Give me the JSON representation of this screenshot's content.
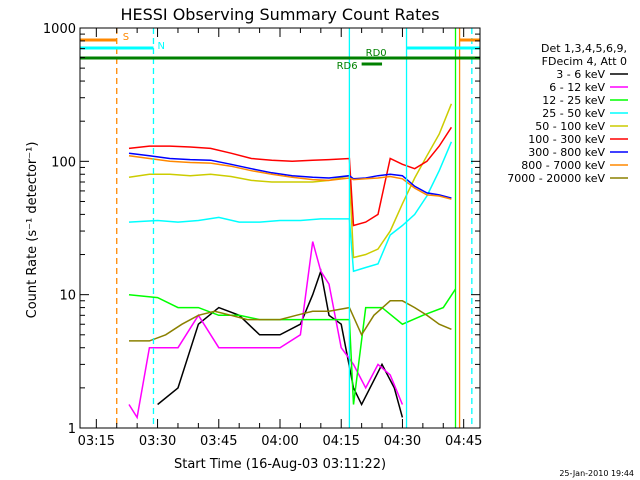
{
  "chart_data": {
    "type": "line",
    "title": "HESSI Observing Summary Count Rates",
    "xlabel": "Start Time (16-Aug-03 03:11:22)",
    "ylabel": "Count Rate (s⁻¹ detector⁻¹)",
    "footer": "25-Jan-2010 19:44",
    "y_scale": "log",
    "ylim": [
      1,
      1000
    ],
    "xlim": [
      "03:11",
      "04:49"
    ],
    "x_ticks": [
      "03:15",
      "03:30",
      "03:45",
      "04:00",
      "04:15",
      "04:30",
      "04:45"
    ],
    "y_ticks": [
      "1",
      "10",
      "100",
      "1000"
    ],
    "legend_header": [
      "Det 1,3,4,5,6,9,",
      "FDecim 4, Att 0"
    ],
    "legend_position": "right",
    "series": [
      {
        "name": "3 - 6 keV",
        "color": "#000000",
        "points": [
          [
            "03:30",
            1.5
          ],
          [
            "03:35",
            2
          ],
          [
            "03:40",
            6
          ],
          [
            "03:45",
            8
          ],
          [
            "03:50",
            7
          ],
          [
            "03:55",
            5
          ],
          [
            "04:00",
            5
          ],
          [
            "04:05",
            6
          ],
          [
            "04:08",
            10
          ],
          [
            "04:10",
            15
          ],
          [
            "04:12",
            7
          ],
          [
            "04:15",
            6
          ],
          [
            "04:18",
            2
          ],
          [
            "04:20",
            1.5
          ],
          [
            "04:25",
            3
          ],
          [
            "04:28",
            2
          ],
          [
            "04:30",
            1.2
          ]
        ]
      },
      {
        "name": "6 - 12 keV",
        "color": "#ff00ff",
        "points": [
          [
            "03:23",
            1.5
          ],
          [
            "03:25",
            1.2
          ],
          [
            "03:28",
            4
          ],
          [
            "03:32",
            4
          ],
          [
            "03:35",
            4
          ],
          [
            "03:40",
            7
          ],
          [
            "03:45",
            4
          ],
          [
            "03:50",
            4
          ],
          [
            "03:55",
            4
          ],
          [
            "04:00",
            4
          ],
          [
            "04:05",
            5
          ],
          [
            "04:08",
            25
          ],
          [
            "04:10",
            15
          ],
          [
            "04:12",
            12
          ],
          [
            "04:15",
            4
          ],
          [
            "04:18",
            3
          ],
          [
            "04:21",
            2
          ],
          [
            "04:24",
            3
          ],
          [
            "04:27",
            2.5
          ],
          [
            "04:30",
            1.5
          ]
        ]
      },
      {
        "name": "12 - 25 keV",
        "color": "#00ff00",
        "points": [
          [
            "03:23",
            10
          ],
          [
            "03:30",
            9.5
          ],
          [
            "03:35",
            8
          ],
          [
            "03:40",
            8
          ],
          [
            "03:45",
            7
          ],
          [
            "03:50",
            7
          ],
          [
            "03:55",
            6.5
          ],
          [
            "04:00",
            6.5
          ],
          [
            "04:05",
            6.5
          ],
          [
            "04:10",
            6.5
          ],
          [
            "04:17",
            6.5
          ],
          [
            "04:18",
            1.5
          ],
          [
            "04:21",
            8
          ],
          [
            "04:25",
            8
          ],
          [
            "04:30",
            6
          ],
          [
            "04:35",
            7
          ],
          [
            "04:40",
            8
          ],
          [
            "04:43",
            11
          ]
        ]
      },
      {
        "name": "25 - 50 keV",
        "color": "#00ffff",
        "points": [
          [
            "03:23",
            35
          ],
          [
            "03:30",
            36
          ],
          [
            "03:35",
            35
          ],
          [
            "03:40",
            36
          ],
          [
            "03:45",
            38
          ],
          [
            "03:50",
            35
          ],
          [
            "03:55",
            35
          ],
          [
            "04:00",
            36
          ],
          [
            "04:05",
            36
          ],
          [
            "04:10",
            37
          ],
          [
            "04:17",
            37
          ],
          [
            "04:18",
            15
          ],
          [
            "04:21",
            16
          ],
          [
            "04:24",
            17
          ],
          [
            "04:27",
            28
          ],
          [
            "04:30",
            33
          ],
          [
            "04:33",
            40
          ],
          [
            "04:36",
            55
          ],
          [
            "04:39",
            85
          ],
          [
            "04:42",
            140
          ]
        ]
      },
      {
        "name": "50 - 100 keV",
        "color": "#cccc00",
        "points": [
          [
            "03:23",
            76
          ],
          [
            "03:28",
            80
          ],
          [
            "03:33",
            80
          ],
          [
            "03:38",
            78
          ],
          [
            "03:43",
            80
          ],
          [
            "03:48",
            77
          ],
          [
            "03:53",
            72
          ],
          [
            "03:58",
            70
          ],
          [
            "04:03",
            70
          ],
          [
            "04:08",
            70
          ],
          [
            "04:12",
            72
          ],
          [
            "04:17",
            78
          ],
          [
            "04:18",
            19
          ],
          [
            "04:21",
            20
          ],
          [
            "04:24",
            22
          ],
          [
            "04:27",
            30
          ],
          [
            "04:30",
            48
          ],
          [
            "04:33",
            75
          ],
          [
            "04:36",
            110
          ],
          [
            "04:39",
            160
          ],
          [
            "04:42",
            270
          ]
        ]
      },
      {
        "name": "100 - 300 keV",
        "color": "#ff0000",
        "points": [
          [
            "03:23",
            125
          ],
          [
            "03:28",
            130
          ],
          [
            "03:33",
            130
          ],
          [
            "03:38",
            128
          ],
          [
            "03:43",
            125
          ],
          [
            "03:48",
            115
          ],
          [
            "03:53",
            105
          ],
          [
            "03:58",
            102
          ],
          [
            "04:03",
            100
          ],
          [
            "04:08",
            102
          ],
          [
            "04:12",
            103
          ],
          [
            "04:17",
            105
          ],
          [
            "04:18",
            33
          ],
          [
            "04:21",
            35
          ],
          [
            "04:24",
            40
          ],
          [
            "04:27",
            105
          ],
          [
            "04:30",
            95
          ],
          [
            "04:33",
            88
          ],
          [
            "04:36",
            100
          ],
          [
            "04:39",
            130
          ],
          [
            "04:42",
            180
          ]
        ]
      },
      {
        "name": "300 - 800 keV",
        "color": "#0000ff",
        "points": [
          [
            "03:23",
            115
          ],
          [
            "03:28",
            110
          ],
          [
            "03:33",
            105
          ],
          [
            "03:38",
            103
          ],
          [
            "03:43",
            102
          ],
          [
            "03:48",
            95
          ],
          [
            "03:53",
            88
          ],
          [
            "03:58",
            82
          ],
          [
            "04:03",
            78
          ],
          [
            "04:08",
            76
          ],
          [
            "04:12",
            75
          ],
          [
            "04:17",
            78
          ],
          [
            "04:18",
            74
          ],
          [
            "04:21",
            75
          ],
          [
            "04:24",
            78
          ],
          [
            "04:27",
            80
          ],
          [
            "04:30",
            78
          ],
          [
            "04:33",
            65
          ],
          [
            "04:36",
            58
          ],
          [
            "04:39",
            56
          ],
          [
            "04:42",
            53
          ]
        ]
      },
      {
        "name": "800 - 7000 keV",
        "color": "#ff8800",
        "points": [
          [
            "03:23",
            110
          ],
          [
            "03:28",
            105
          ],
          [
            "03:33",
            100
          ],
          [
            "03:38",
            98
          ],
          [
            "03:43",
            97
          ],
          [
            "03:48",
            92
          ],
          [
            "03:53",
            85
          ],
          [
            "03:58",
            80
          ],
          [
            "04:03",
            76
          ],
          [
            "04:08",
            73
          ],
          [
            "04:12",
            72
          ],
          [
            "04:17",
            75
          ],
          [
            "04:18",
            73
          ],
          [
            "04:21",
            74
          ],
          [
            "04:24",
            75
          ],
          [
            "04:27",
            77
          ],
          [
            "04:30",
            74
          ],
          [
            "04:33",
            63
          ],
          [
            "04:36",
            56
          ],
          [
            "04:39",
            55
          ],
          [
            "04:42",
            52
          ]
        ]
      },
      {
        "name": "7000 - 20000 keV",
        "color": "#8b8000",
        "points": [
          [
            "03:23",
            4.5
          ],
          [
            "03:28",
            4.5
          ],
          [
            "03:32",
            5
          ],
          [
            "03:36",
            6
          ],
          [
            "03:40",
            7
          ],
          [
            "03:44",
            7.5
          ],
          [
            "03:48",
            7
          ],
          [
            "03:52",
            6.5
          ],
          [
            "03:56",
            6.5
          ],
          [
            "04:00",
            6.5
          ],
          [
            "04:04",
            7
          ],
          [
            "04:08",
            7.5
          ],
          [
            "04:12",
            7.5
          ],
          [
            "04:17",
            8
          ],
          [
            "04:20",
            5
          ],
          [
            "04:23",
            7
          ],
          [
            "04:27",
            9
          ],
          [
            "04:30",
            9
          ],
          [
            "04:33",
            8
          ],
          [
            "04:36",
            7
          ],
          [
            "04:39",
            6
          ],
          [
            "04:42",
            5.5
          ]
        ]
      }
    ],
    "annotations": [
      {
        "label": "S",
        "color": "#ff8800",
        "start": "03:11",
        "end": "03:20"
      },
      {
        "label": "N",
        "color": "#00ffff",
        "start": "03:11",
        "end": "03:29"
      },
      {
        "label": "N",
        "color": "#00ffff",
        "start": "04:31",
        "end": "04:49"
      },
      {
        "label": "",
        "color": "#ff8800",
        "start": "04:44",
        "end": "04:49"
      },
      {
        "label": "RD0",
        "color": "#008000",
        "start": "03:11",
        "end": "04:49"
      },
      {
        "label": "RD6",
        "color": "#008000",
        "start": "04:20",
        "end": "04:25"
      }
    ],
    "vertical_lines": [
      {
        "time": "03:20",
        "color": "#ff8800",
        "style": "dashed"
      },
      {
        "time": "03:29",
        "color": "#00ffff",
        "style": "dashed"
      },
      {
        "time": "04:17",
        "color": "#00ffff",
        "style": "solid"
      },
      {
        "time": "04:31",
        "color": "#00ffff",
        "style": "solid"
      },
      {
        "time": "04:43",
        "color": "#00ff00",
        "style": "solid"
      },
      {
        "time": "04:44",
        "color": "#ff8800",
        "style": "solid"
      },
      {
        "time": "04:47",
        "color": "#00ffff",
        "style": "dashed"
      }
    ]
  }
}
